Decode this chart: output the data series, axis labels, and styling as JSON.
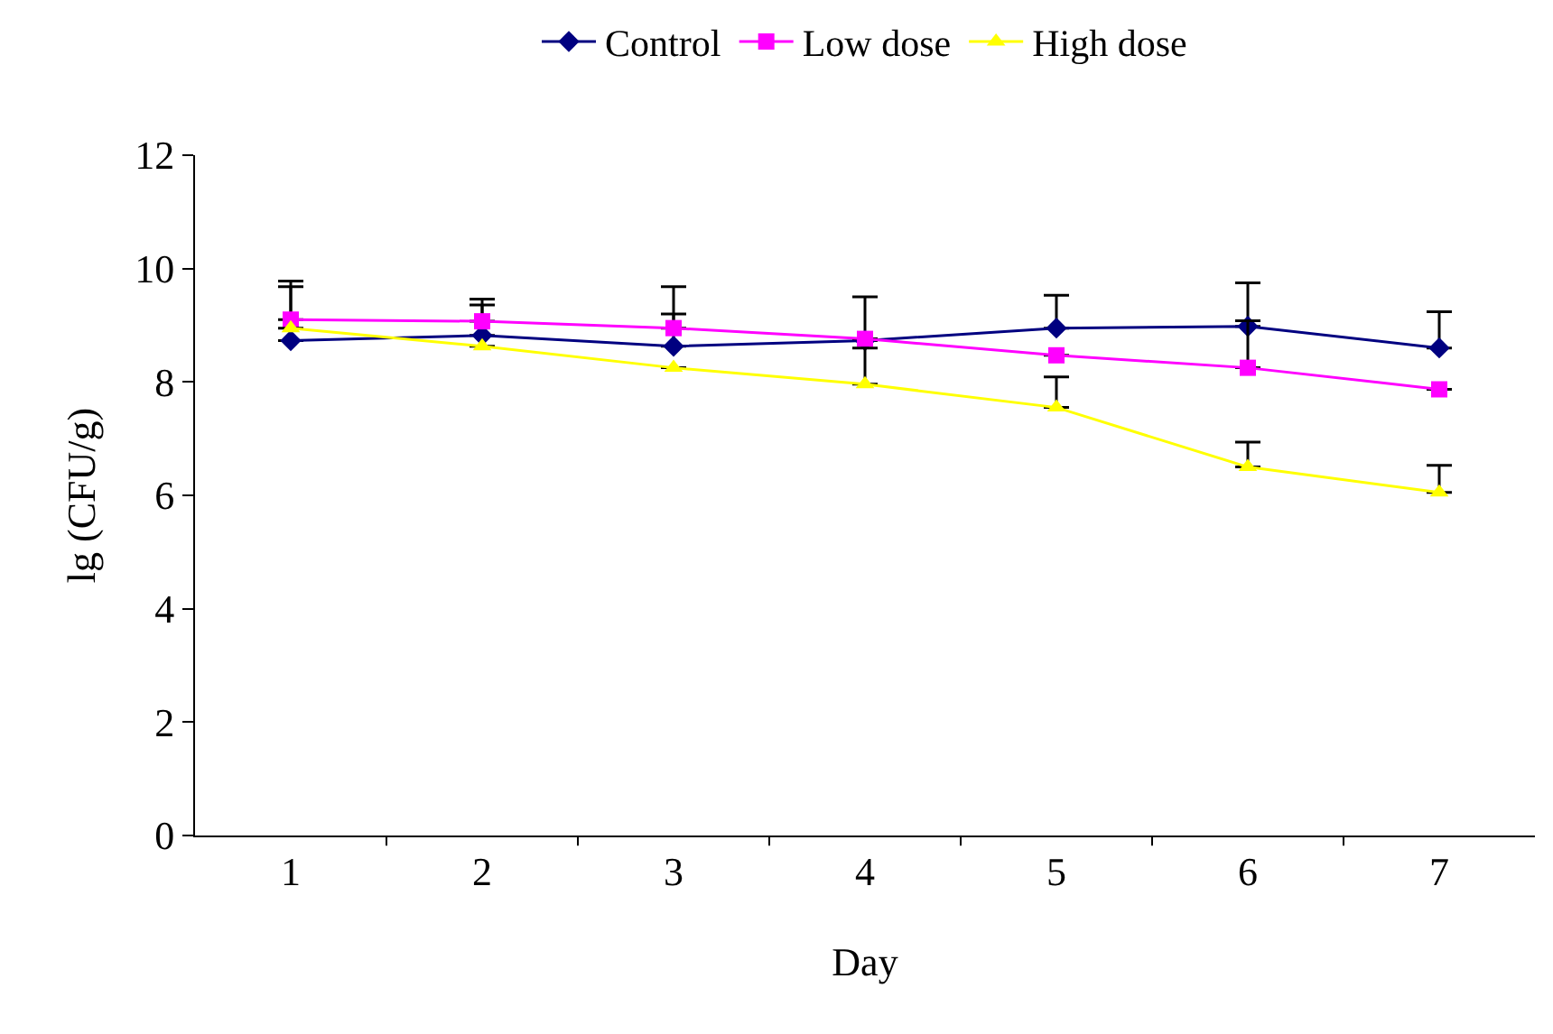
{
  "chart_data": {
    "type": "line",
    "xlabel": "Day",
    "ylabel": "lg (CFU/g)",
    "categories": [
      "1",
      "2",
      "3",
      "4",
      "5",
      "6",
      "7"
    ],
    "ylim": [
      0,
      12
    ],
    "yticks": [
      0,
      2,
      4,
      6,
      8,
      10,
      12
    ],
    "legend": "top",
    "line_style": "solid",
    "series": [
      {
        "name": "Control",
        "color": "#000080",
        "marker": "diamond",
        "values": [
          8.73,
          8.82,
          8.63,
          8.73,
          8.95,
          8.98,
          8.6
        ],
        "errors": [
          [
            8.73,
            9.68
          ],
          [
            8.82,
            9.46
          ],
          [
            8.63,
            9.68
          ],
          [
            8.73,
            9.5
          ],
          [
            8.95,
            9.53
          ],
          [
            8.98,
            9.75
          ],
          [
            8.6,
            9.24
          ]
        ]
      },
      {
        "name": "Low dose",
        "color": "#ff00ff",
        "marker": "square",
        "values": [
          9.1,
          9.07,
          8.95,
          8.76,
          8.47,
          8.25,
          7.87
        ],
        "errors": [
          [
            9.1,
            9.78
          ],
          [
            9.07,
            9.36
          ],
          [
            8.95,
            9.2
          ],
          null,
          null,
          [
            8.25,
            9.08
          ],
          null
        ]
      },
      {
        "name": "High dose",
        "color": "#ffff00",
        "marker": "triangle",
        "values": [
          8.95,
          8.63,
          8.25,
          7.96,
          7.55,
          6.5,
          6.05
        ],
        "errors": [
          null,
          null,
          null,
          [
            7.96,
            8.6
          ],
          [
            7.55,
            8.09
          ],
          [
            6.5,
            6.94
          ],
          [
            6.05,
            6.53
          ]
        ]
      }
    ]
  }
}
